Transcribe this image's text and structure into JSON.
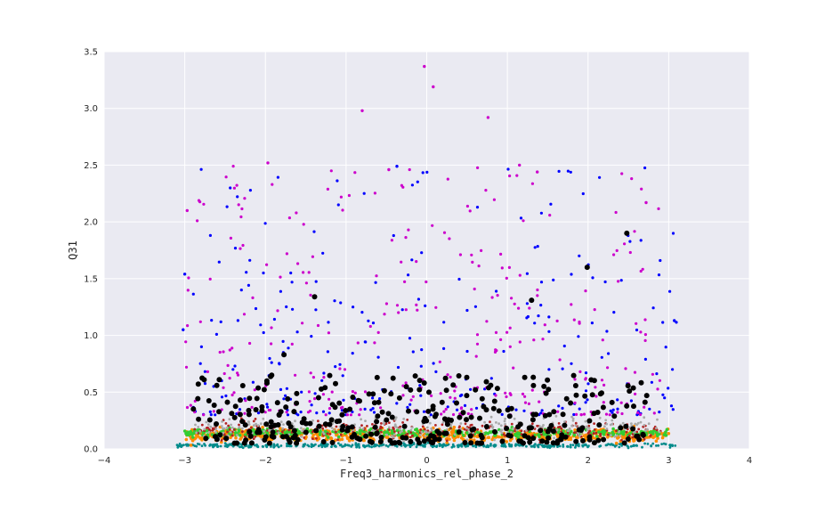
{
  "chart_data": {
    "type": "scatter",
    "title": "",
    "xlabel": "Freq3_harmonics_rel_phase_2",
    "ylabel": "Q31",
    "xlim": [
      -4,
      4
    ],
    "ylim": [
      0,
      3.5
    ],
    "xticks": [
      "−4",
      "−3",
      "−2",
      "−1",
      "0",
      "1",
      "2",
      "3",
      "4"
    ],
    "yticks": [
      "0.0",
      "0.5",
      "1.0",
      "1.5",
      "2.0",
      "2.5",
      "3.0",
      "3.5"
    ],
    "grid": true,
    "legend": "none",
    "style": {
      "background": "#EAEAF2",
      "grid_color": "#FFFFFF"
    },
    "series": [
      {
        "color": "#008B8B",
        "x_range": [
          -3.1,
          3.1
        ],
        "y_range": [
          0.0,
          0.06
        ]
      },
      {
        "color": "#FF8C00",
        "x_range": [
          -3.0,
          3.0
        ],
        "y_range": [
          0.02,
          0.22
        ]
      },
      {
        "color": "#32CD32",
        "x_range": [
          -3.0,
          3.0
        ],
        "y_range": [
          0.08,
          0.2
        ]
      },
      {
        "color": "#B22222",
        "x_range": [
          -2.9,
          2.9
        ],
        "y_range": [
          0.02,
          0.3
        ]
      },
      {
        "color": "#A9A9A9",
        "x_range": [
          -2.9,
          2.9
        ],
        "y_range": [
          0.02,
          0.35
        ]
      },
      {
        "color": "#0000FF",
        "x_range": [
          -3.0,
          3.1
        ],
        "y_range": [
          0.3,
          2.5
        ]
      },
      {
        "color": "#CC00CC",
        "x_range": [
          -3.0,
          2.9
        ],
        "y_range": [
          0.3,
          2.5
        ]
      },
      {
        "color": "#000000",
        "x_range": [
          -2.9,
          2.8
        ],
        "y_range": [
          0.05,
          0.65
        ]
      }
    ],
    "notable_points": [
      {
        "color": "#CC00CC",
        "x": -0.03,
        "y": 3.37
      },
      {
        "color": "#CC00CC",
        "x": 0.08,
        "y": 3.19
      },
      {
        "color": "#CC00CC",
        "x": -0.8,
        "y": 2.98
      },
      {
        "color": "#CC00CC",
        "x": 0.76,
        "y": 2.92
      },
      {
        "color": "#CC00CC",
        "x": -1.97,
        "y": 2.52
      },
      {
        "color": "#CC00CC",
        "x": 1.15,
        "y": 2.5
      },
      {
        "color": "#0000FF",
        "x": -0.37,
        "y": 2.49
      },
      {
        "color": "#CC00CC",
        "x": -0.47,
        "y": 2.46
      },
      {
        "color": "#CC00CC",
        "x": 1.37,
        "y": 2.44
      },
      {
        "color": "#CC00CC",
        "x": -2.97,
        "y": 2.1
      },
      {
        "color": "#CC00CC",
        "x": 2.72,
        "y": 2.17
      },
      {
        "color": "#0000FF",
        "x": -3.0,
        "y": 1.54
      },
      {
        "color": "#0000FF",
        "x": -3.02,
        "y": 1.05
      },
      {
        "color": "#0000FF",
        "x": 3.07,
        "y": 1.13
      },
      {
        "color": "#000000",
        "x": 2.48,
        "y": 1.9
      },
      {
        "color": "#000000",
        "x": 1.99,
        "y": 1.6
      },
      {
        "color": "#000000",
        "x": 1.3,
        "y": 1.31
      },
      {
        "color": "#000000",
        "x": -1.39,
        "y": 1.34
      },
      {
        "color": "#000000",
        "x": -1.77,
        "y": 0.83
      }
    ]
  }
}
